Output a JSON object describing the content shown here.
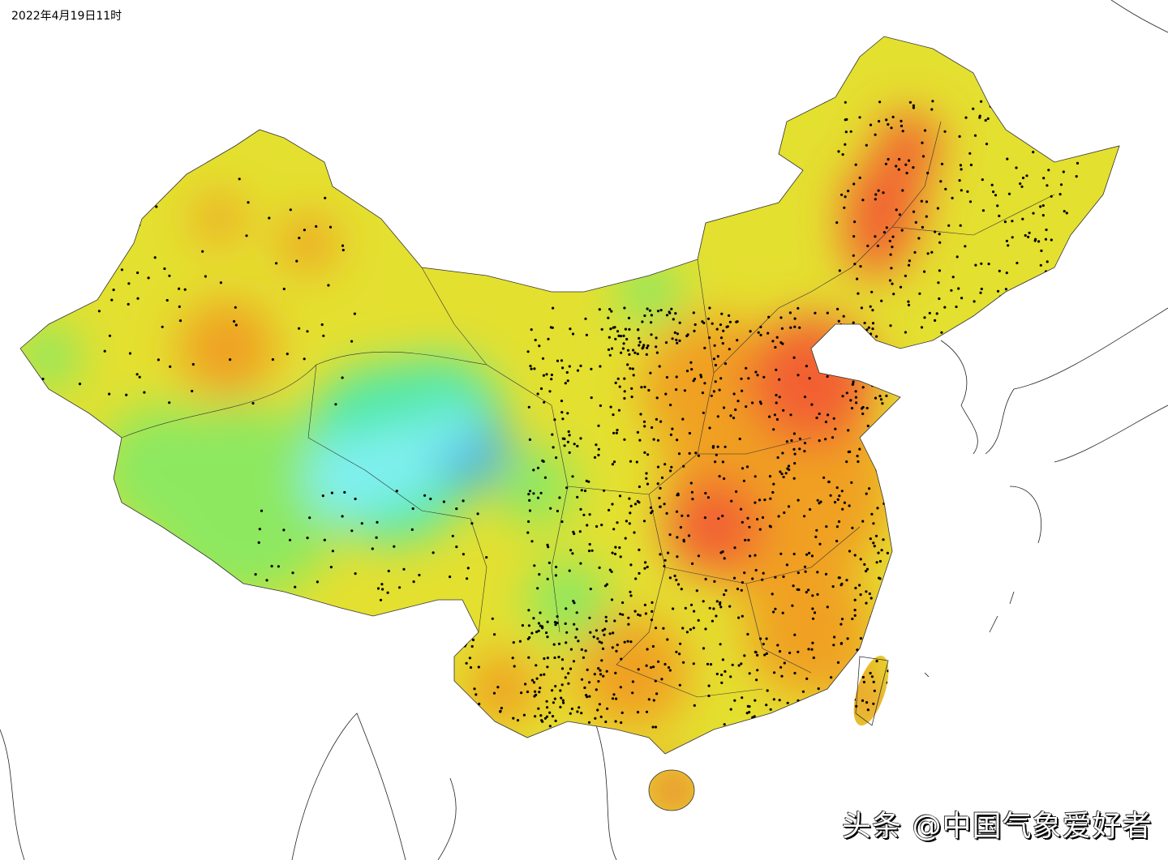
{
  "title": "2022年4月19日11时",
  "watermark": "头条 @中国气象爱好者",
  "colors": {
    "base": "#e4e030",
    "warm": "#f0a020",
    "hot": "#f26030",
    "cool": "#8de860",
    "cold": "#50e8a8",
    "coldest": "#40a8e0",
    "cyan": "#80f0f0",
    "station": "#000000"
  }
}
